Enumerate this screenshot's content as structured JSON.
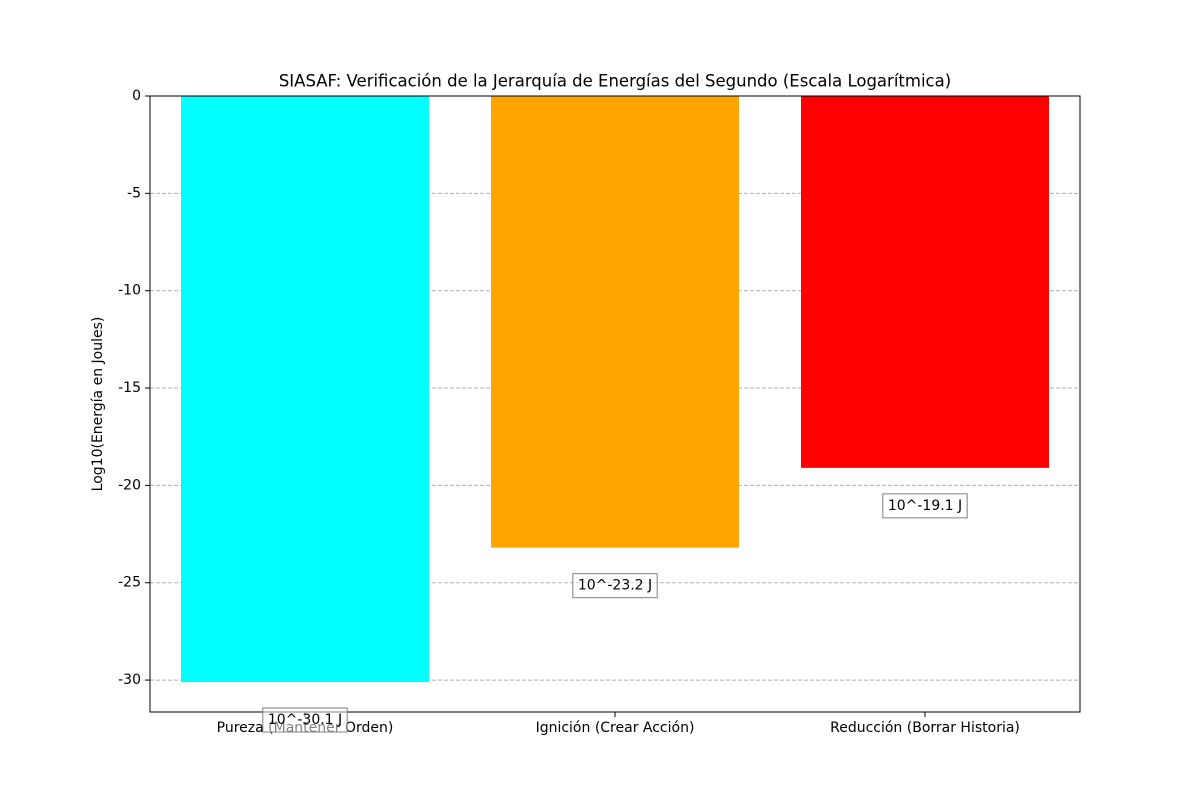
{
  "chart_data": {
    "type": "bar",
    "title": "SIASAF: Verificación de la Jerarquía de Energías del Segundo (Escala Logarítmica)",
    "y_label": "Log10(Energía en Joules)",
    "categories": [
      "Pureza (Mantener Orden)",
      "Ignición (Crear Acción)",
      "Reducción (Borrar Historia)"
    ],
    "values": [
      -30.1,
      -23.2,
      -19.1
    ],
    "value_labels": [
      "10^-30.1 J",
      "10^-23.2 J",
      "10^-19.1 J"
    ],
    "colors": [
      "#00ffff",
      "#ffa500",
      "#ff0000"
    ],
    "ylim": [
      -31.64,
      0
    ],
    "yticks": [
      0,
      -5,
      -10,
      -15,
      -20,
      -25,
      -30
    ],
    "grid": true
  }
}
